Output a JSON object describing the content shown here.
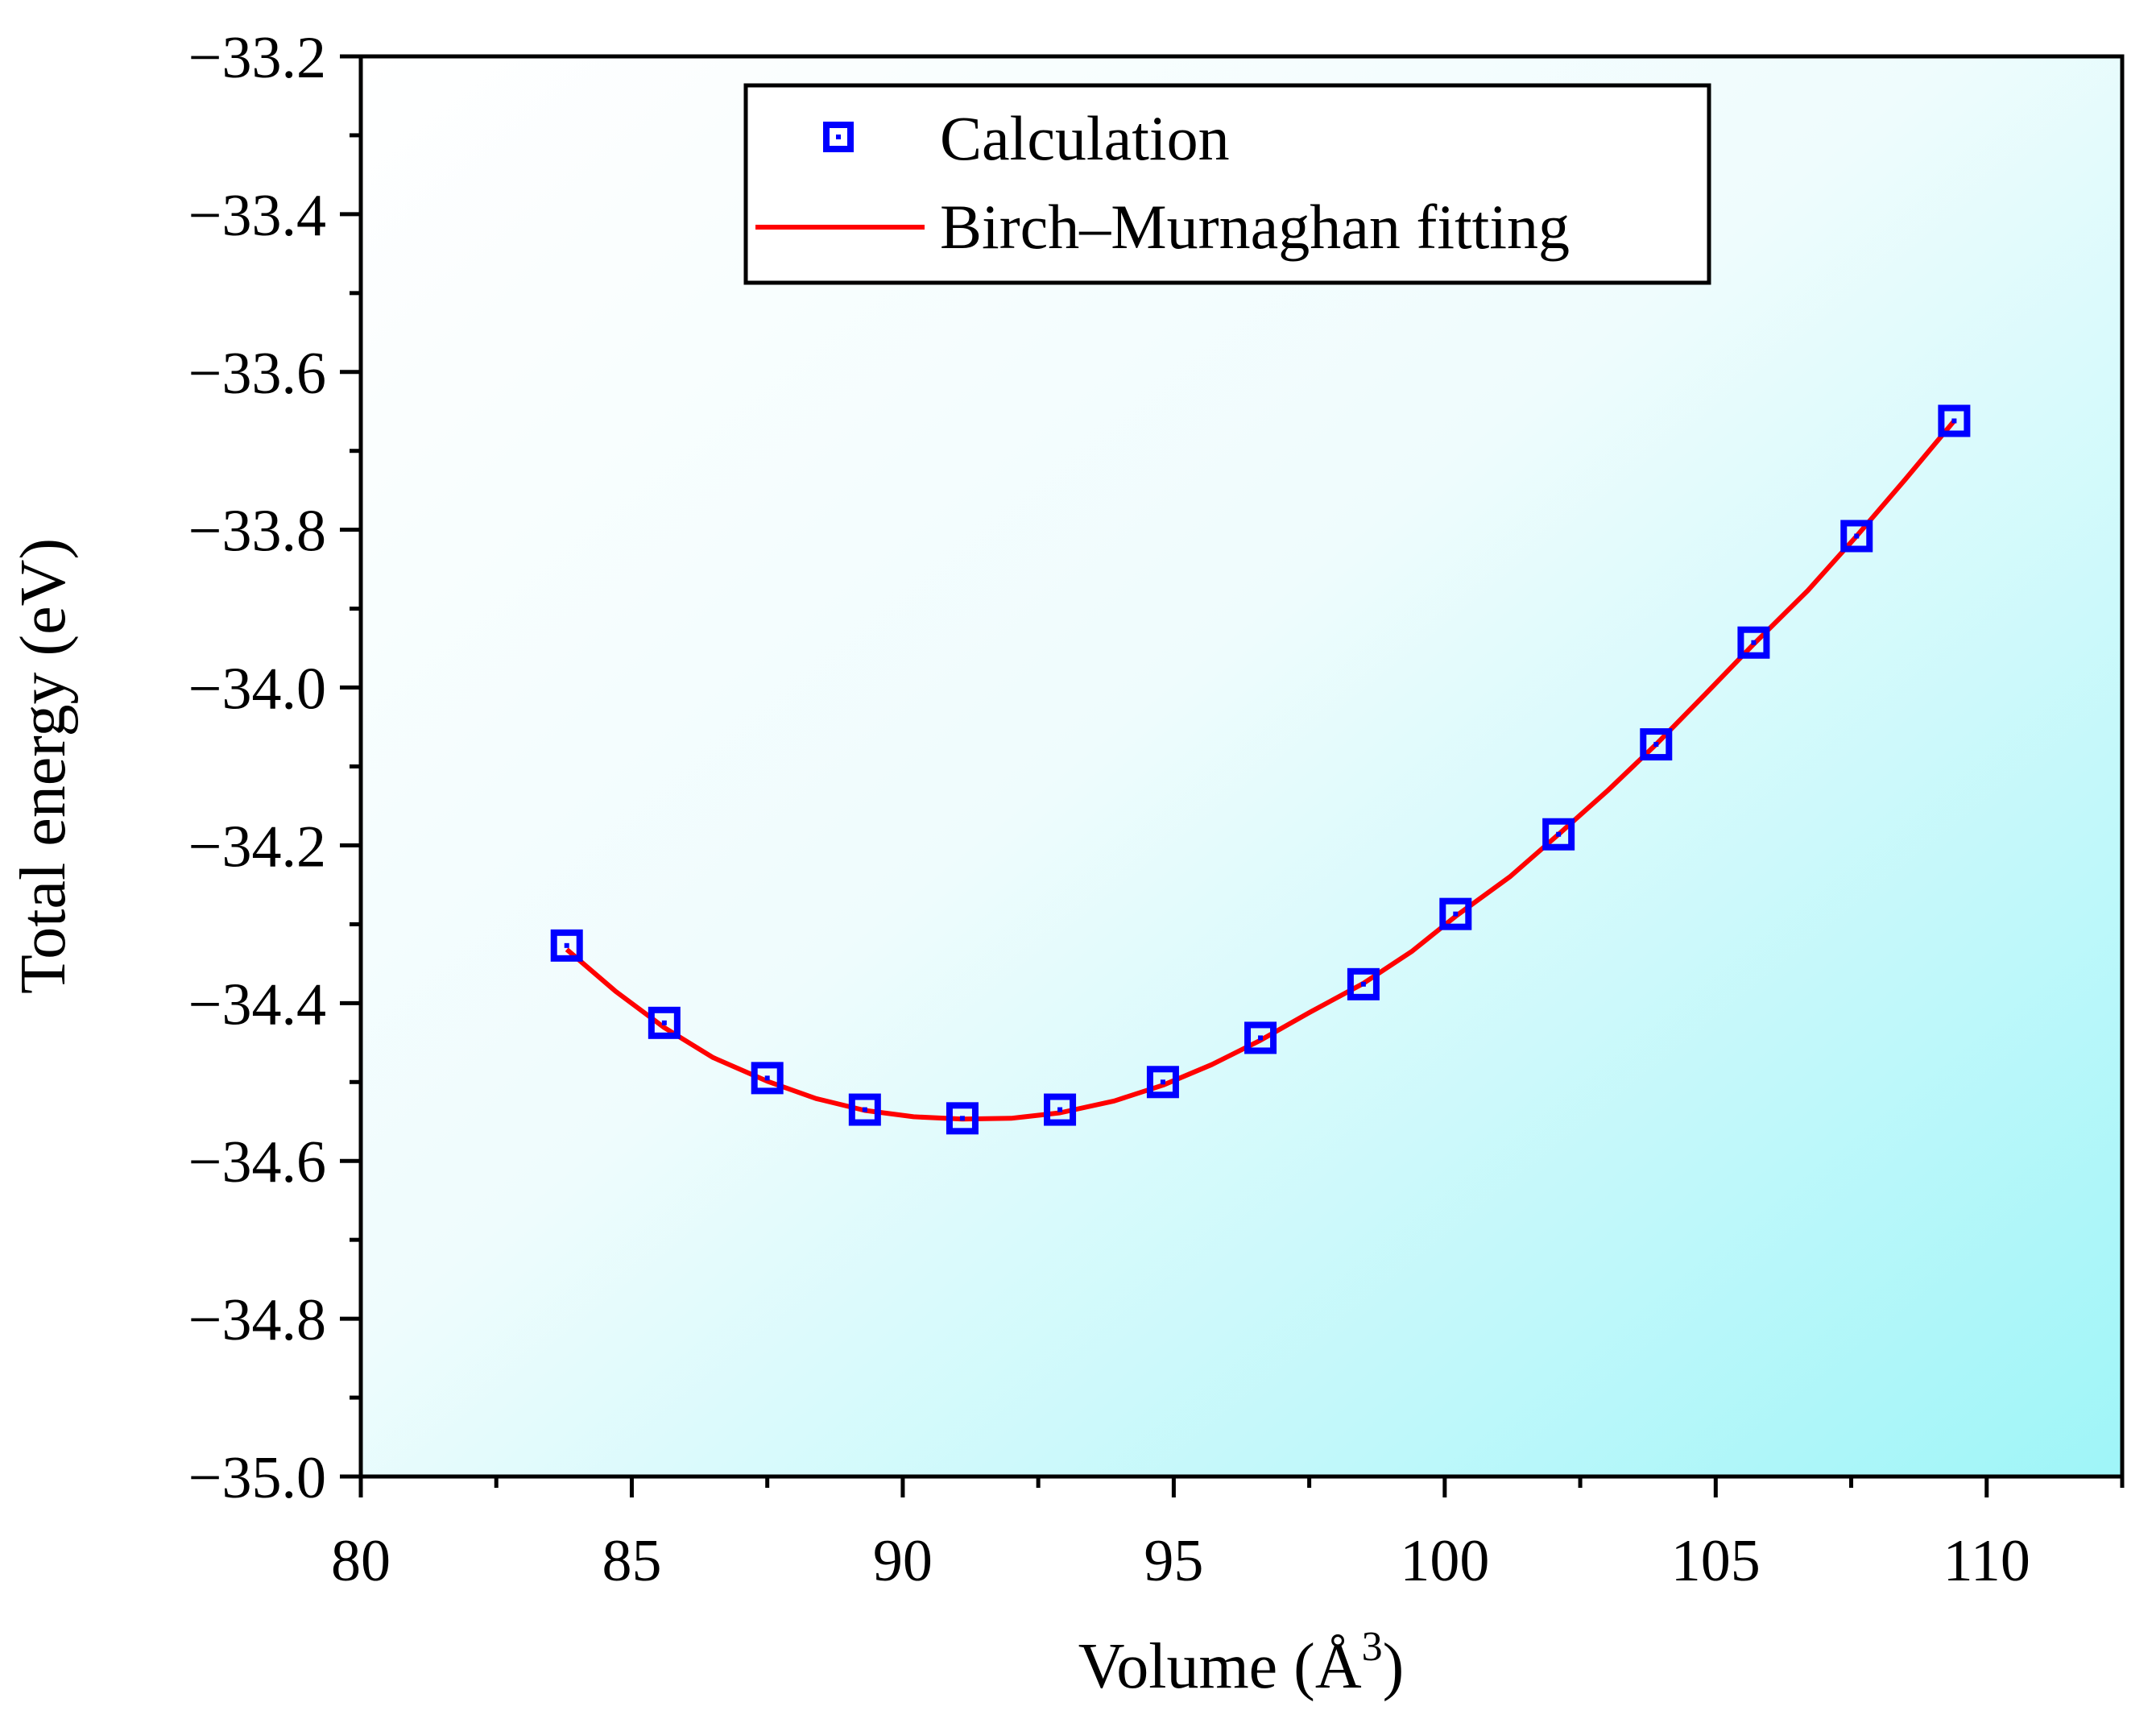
{
  "chart_data": {
    "type": "scatter",
    "xlabel": "Volume (Å",
    "xlabel_sup": "3",
    "xlabel_close": ")",
    "ylabel": "Total energy (eV)",
    "xlim": [
      80,
      112.5
    ],
    "ylim": [
      -35.0,
      -33.2
    ],
    "xticks": [
      80,
      85,
      90,
      95,
      100,
      105,
      110
    ],
    "yticks": [
      -35.0,
      -34.8,
      -34.6,
      -34.4,
      -34.2,
      -34.0,
      -33.8,
      -33.6,
      -33.4,
      -33.2
    ],
    "ytick_labels": [
      "−35.0",
      "−34.8",
      "−34.6",
      "−34.4",
      "−34.2",
      "−34.0",
      "−33.8",
      "−33.6",
      "−33.4",
      "−33.2"
    ],
    "grid": false,
    "legend_position": "top-center",
    "background": "gradient white (top-left) to light cyan (bottom-right)",
    "series": [
      {
        "name": "Calculation",
        "kind": "scatter",
        "marker": "open-square",
        "color": "#0000ff",
        "x": [
          83.8,
          85.6,
          87.5,
          89.3,
          91.1,
          92.9,
          94.8,
          96.6,
          98.5,
          100.2,
          102.1,
          103.9,
          105.7,
          107.6,
          109.4
        ],
        "y": [
          -34.327,
          -34.425,
          -34.495,
          -34.535,
          -34.546,
          -34.535,
          -34.5,
          -34.444,
          -34.376,
          -34.287,
          -34.186,
          -34.072,
          -33.943,
          -33.808,
          -33.662
        ]
      },
      {
        "name": "Birch–Murnaghan fitting",
        "kind": "line",
        "color": "#ff0000",
        "x": [
          83.8,
          84.7,
          85.6,
          86.5,
          87.5,
          88.4,
          89.3,
          90.2,
          91.1,
          92.0,
          92.9,
          93.9,
          94.8,
          95.7,
          96.6,
          97.5,
          98.5,
          99.4,
          100.2,
          101.2,
          102.1,
          103.0,
          103.9,
          104.8,
          105.7,
          106.7,
          107.6,
          108.5,
          109.4
        ],
        "y": [
          -34.332,
          -34.385,
          -34.431,
          -34.469,
          -34.499,
          -34.521,
          -34.536,
          -34.544,
          -34.547,
          -34.546,
          -34.539,
          -34.524,
          -34.504,
          -34.478,
          -34.447,
          -34.412,
          -34.375,
          -34.334,
          -34.29,
          -34.24,
          -34.186,
          -34.131,
          -34.072,
          -34.009,
          -33.945,
          -33.877,
          -33.808,
          -33.736,
          -33.662
        ]
      }
    ]
  }
}
